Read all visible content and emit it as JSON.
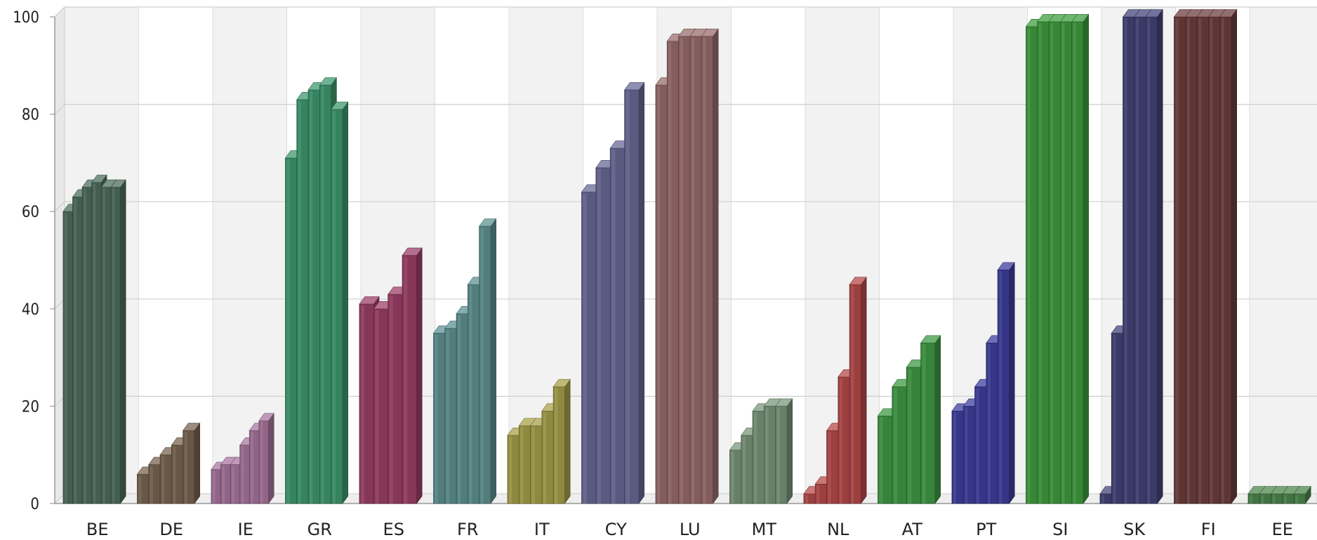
{
  "chart_data": {
    "type": "bar",
    "style": "3d-clustered",
    "title": "",
    "xlabel": "",
    "ylabel": "",
    "ylim": [
      0,
      100
    ],
    "yticks": [
      0,
      20,
      40,
      60,
      80,
      100
    ],
    "grid": true,
    "legend": "none",
    "categories": [
      "BE",
      "DE",
      "IE",
      "GR",
      "ES",
      "FR",
      "IT",
      "CY",
      "LU",
      "MT",
      "NL",
      "AT",
      "PT",
      "SI",
      "SK",
      "FI",
      "EE"
    ],
    "colors": [
      "#4f6f5f",
      "#7a6652",
      "#a9779f",
      "#3f9a70",
      "#9e3f68",
      "#5f9393",
      "#a8a14a",
      "#6a6a98",
      "#9a6d6d",
      "#7a977a",
      "#b84a4a",
      "#3f9a45",
      "#3f3fa0",
      "#3f9e3f",
      "#44447a",
      "#6e3e3e",
      "#4e874e"
    ],
    "values": [
      [
        60,
        63,
        65,
        66,
        65,
        65
      ],
      [
        6,
        8,
        10,
        12,
        15
      ],
      [
        7,
        8,
        8,
        12,
        15,
        17
      ],
      [
        71,
        83,
        85,
        86,
        81
      ],
      [
        41,
        40,
        43,
        51
      ],
      [
        35,
        36,
        39,
        45,
        57
      ],
      [
        14,
        16,
        16,
        19,
        24
      ],
      [
        64,
        69,
        73,
        85
      ],
      [
        86,
        95,
        96,
        96,
        96
      ],
      [
        11,
        14,
        19,
        20,
        20
      ],
      [
        2,
        4,
        15,
        26,
        45
      ],
      [
        18,
        24,
        28,
        33
      ],
      [
        19,
        20,
        24,
        33,
        48
      ],
      [
        98,
        99,
        99,
        99,
        99
      ],
      [
        2,
        35,
        100,
        100,
        100
      ],
      [
        100,
        100,
        100,
        100,
        100
      ],
      [
        2,
        2,
        2,
        2,
        2
      ]
    ]
  }
}
